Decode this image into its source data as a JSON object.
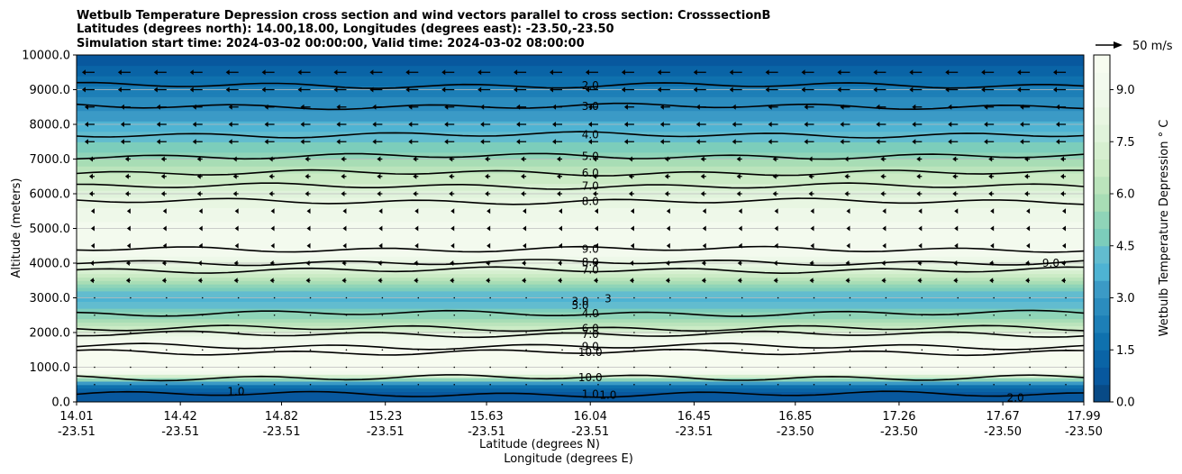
{
  "chart_data": {
    "type": "heatmap",
    "title_lines": [
      "Wetbulb Temperature Depression cross section and wind vectors parallel to cross section: CrosssectionB",
      "Latitudes (degrees north): 14.00,18.00, Longitudes (degrees east): -23.50,-23.50",
      "Simulation start time: 2024-03-02 00:00:00, Valid time: 2024-03-02 08:00:00"
    ],
    "ylabel": "Altitude (meters)",
    "xlabel_lat": "Latitude (degrees N)",
    "xlabel_lon": "Longitude (degrees E)",
    "ylim": [
      0,
      10000
    ],
    "yticks": [
      "0.0",
      "1000.0",
      "2000.0",
      "3000.0",
      "4000.0",
      "5000.0",
      "6000.0",
      "7000.0",
      "8000.0",
      "9000.0",
      "10000.0"
    ],
    "xlim": [
      14.01,
      17.99
    ],
    "xticks": [
      {
        "lat": "14.01",
        "lon": "-23.51",
        "v": 14.01
      },
      {
        "lat": "14.42",
        "lon": "-23.51",
        "v": 14.42
      },
      {
        "lat": "14.82",
        "lon": "-23.51",
        "v": 14.82
      },
      {
        "lat": "15.23",
        "lon": "-23.51",
        "v": 15.23
      },
      {
        "lat": "15.63",
        "lon": "-23.51",
        "v": 15.63
      },
      {
        "lat": "16.04",
        "lon": "-23.51",
        "v": 16.04
      },
      {
        "lat": "16.45",
        "lon": "-23.51",
        "v": 16.45
      },
      {
        "lat": "16.85",
        "lon": "-23.50",
        "v": 16.85
      },
      {
        "lat": "17.26",
        "lon": "-23.50",
        "v": 17.26
      },
      {
        "lat": "17.67",
        "lon": "-23.50",
        "v": 17.67
      },
      {
        "lat": "17.99",
        "lon": "-23.50",
        "v": 17.99
      }
    ],
    "colorbar": {
      "label": "Wetbulb Temperature Depression $^\\circ$C",
      "label_text": "Wetbulb Temperature Depression ° C",
      "range": [
        0,
        10
      ],
      "ticks": [
        "0.0",
        "1.5",
        "3.0",
        "4.5",
        "6.0",
        "7.5",
        "9.0"
      ],
      "colors": [
        "#084a86",
        "#08589e",
        "#0a64a6",
        "#0f71ae",
        "#1d7fb7",
        "#2b8cbe",
        "#3b9ac6",
        "#4eb3d3",
        "#62bccf",
        "#7ccdbb",
        "#8fd4b8",
        "#a8ddb5",
        "#bbe4bc",
        "#cbebc5",
        "#d6efd0",
        "#e0f3db",
        "#e8f6e2",
        "#eef8e9",
        "#f3faee",
        "#f7fcf0"
      ]
    },
    "quiver_key": "50 m/s",
    "profile_wbd": [
      {
        "alt": 0,
        "v": 0.6
      },
      {
        "alt": 300,
        "v": 0.8
      },
      {
        "alt": 500,
        "v": 2.0
      },
      {
        "alt": 700,
        "v": 6.0
      },
      {
        "alt": 900,
        "v": 10.2
      },
      {
        "alt": 1200,
        "v": 10.6
      },
      {
        "alt": 1500,
        "v": 10.0
      },
      {
        "alt": 1800,
        "v": 8.8
      },
      {
        "alt": 2100,
        "v": 7.2
      },
      {
        "alt": 2400,
        "v": 5.6
      },
      {
        "alt": 2700,
        "v": 4.4
      },
      {
        "alt": 3000,
        "v": 3.9
      },
      {
        "alt": 3300,
        "v": 5.0
      },
      {
        "alt": 3600,
        "v": 6.6
      },
      {
        "alt": 3900,
        "v": 8.0
      },
      {
        "alt": 4300,
        "v": 9.2
      },
      {
        "alt": 4800,
        "v": 9.4
      },
      {
        "alt": 5400,
        "v": 8.8
      },
      {
        "alt": 6000,
        "v": 7.8
      },
      {
        "alt": 6600,
        "v": 6.4
      },
      {
        "alt": 7200,
        "v": 5.0
      },
      {
        "alt": 7800,
        "v": 4.0
      },
      {
        "alt": 8400,
        "v": 3.0
      },
      {
        "alt": 9000,
        "v": 2.2
      },
      {
        "alt": 9600,
        "v": 1.2
      },
      {
        "alt": 10000,
        "v": 0.6
      }
    ],
    "contours": [
      {
        "label": "1.0",
        "alt": 220,
        "labelx": 16.04
      },
      {
        "label": "2.0",
        "alt": 9120,
        "labelx": 16.04
      },
      {
        "label": "3.0",
        "alt": 8520,
        "labelx": 16.04
      },
      {
        "label": "4.0",
        "alt": 7700,
        "labelx": 16.04
      },
      {
        "label": "5.0",
        "alt": 7080,
        "labelx": 16.04
      },
      {
        "label": "6.0",
        "alt": 6600,
        "labelx": 16.04
      },
      {
        "label": "7.0",
        "alt": 6220,
        "labelx": 16.04
      },
      {
        "label": "8.0",
        "alt": 5780,
        "labelx": 16.04
      },
      {
        "label": "9.0",
        "alt": 4400,
        "labelx": 16.04
      },
      {
        "label": "8.0",
        "alt": 4020,
        "labelx": 16.04
      },
      {
        "label": "7.0",
        "alt": 3800,
        "labelx": 16.04
      },
      {
        "label": "4.0",
        "alt": 2550,
        "labelx": 16.04
      },
      {
        "label": "6.0",
        "alt": 2120,
        "labelx": 16.04
      },
      {
        "label": "7.0",
        "alt": 1950,
        "labelx": 16.04
      },
      {
        "label": "9.0",
        "alt": 1600,
        "labelx": 16.04
      },
      {
        "label": "10.0",
        "alt": 1430,
        "labelx": 16.04
      },
      {
        "label": "10.0",
        "alt": 700,
        "labelx": 16.04
      }
    ],
    "extra_contour_labels": [
      {
        "label": "3.0",
        "alt": 2900,
        "x": 16.0
      },
      {
        "label": "5.0",
        "alt": 2780,
        "x": 16.0
      },
      {
        "label": "3",
        "alt": 2980,
        "x": 16.11
      },
      {
        "label": "9.0",
        "alt": 4000,
        "x": 17.86
      },
      {
        "label": "1.0",
        "alt": 300,
        "x": 14.64
      },
      {
        "label": "2.0",
        "alt": 120,
        "x": 17.72
      },
      {
        "label": "1.0",
        "alt": 200,
        "x": 16.11
      }
    ]
  }
}
